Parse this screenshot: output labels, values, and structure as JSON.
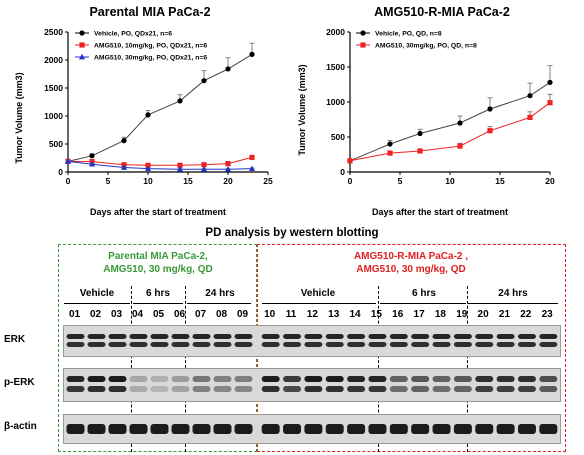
{
  "chart_data": [
    {
      "type": "line",
      "title": "Parental MIA PaCa-2",
      "xlabel": "Days after the start of treatment",
      "ylabel": "Tumor Volume (mm3)",
      "xlim": [
        0,
        25
      ],
      "ylim": [
        0,
        2500
      ],
      "xticks": [
        0,
        5,
        10,
        15,
        20,
        25
      ],
      "yticks": [
        0,
        500,
        1000,
        1500,
        2000,
        2500
      ],
      "grid": false,
      "legend": "top-left",
      "series": [
        {
          "name": "Vehicle, PO, QDx21, n=6",
          "color": "#000000",
          "marker": "circle",
          "x": [
            0,
            3,
            7,
            10,
            14,
            17,
            20,
            23
          ],
          "y": [
            190,
            290,
            560,
            1020,
            1270,
            1630,
            1840,
            2100
          ],
          "err": [
            20,
            30,
            60,
            80,
            110,
            180,
            200,
            200
          ]
        },
        {
          "name": "AMG510, 10mg/kg, PO, QDx21, n=6",
          "color": "#ee2222",
          "marker": "square",
          "x": [
            0,
            3,
            7,
            10,
            14,
            17,
            20,
            23
          ],
          "y": [
            190,
            185,
            130,
            120,
            120,
            130,
            150,
            260
          ],
          "err": [
            15,
            15,
            15,
            15,
            15,
            15,
            20,
            30
          ]
        },
        {
          "name": "AMG510, 30mg/kg, PO, QDx21, n=6",
          "color": "#2233cc",
          "marker": "triangle",
          "x": [
            0,
            3,
            7,
            10,
            14,
            17,
            20,
            23
          ],
          "y": [
            190,
            140,
            80,
            60,
            50,
            50,
            50,
            60
          ],
          "err": [
            15,
            15,
            10,
            10,
            10,
            10,
            10,
            10
          ]
        }
      ]
    },
    {
      "type": "line",
      "title": "AMG510-R-MIA PaCa-2",
      "xlabel": "Days after the start of treatment",
      "ylabel": "Tumor Volume (mm3)",
      "xlim": [
        0,
        20
      ],
      "ylim": [
        0,
        2000
      ],
      "xticks": [
        0,
        5,
        10,
        15,
        20
      ],
      "yticks": [
        0,
        500,
        1000,
        1500,
        2000
      ],
      "grid": false,
      "legend": "top-left",
      "series": [
        {
          "name": "Vehicle, PO, QD, n=8",
          "color": "#000000",
          "marker": "circle",
          "x": [
            0,
            4,
            7,
            11,
            14,
            18,
            20
          ],
          "y": [
            160,
            400,
            550,
            700,
            900,
            1090,
            1280
          ],
          "err": [
            20,
            50,
            60,
            100,
            160,
            180,
            240
          ]
        },
        {
          "name": "AMG510, 30mg/kg, PO, QD, n=8",
          "color": "#ee2222",
          "marker": "square",
          "x": [
            0,
            4,
            7,
            11,
            14,
            18,
            20
          ],
          "y": [
            160,
            270,
            300,
            370,
            590,
            780,
            990
          ],
          "err": [
            20,
            30,
            30,
            40,
            60,
            80,
            120
          ]
        }
      ]
    }
  ],
  "pd": {
    "title": "PD analysis by western blotting",
    "parental_head": [
      "Parental MIA PaCa-2,",
      "AMG510, 30 mg/kg, QD"
    ],
    "resistant_head": [
      "AMG510-R-MIA PaCa-2 ,",
      "AMG510, 30 mg/kg, QD"
    ],
    "groups": {
      "p_vehicle": "Vehicle",
      "p_6h": "6 hrs",
      "p_24h": "24 hrs",
      "r_vehicle": "Vehicle",
      "r_6h": "6 hrs",
      "r_24h": "24 hrs"
    },
    "lanes_parental": [
      "01",
      "02",
      "03",
      "04",
      "05",
      "06",
      "07",
      "08",
      "09"
    ],
    "lanes_resistant": [
      "10",
      "11",
      "12",
      "13",
      "14",
      "15",
      "16",
      "17",
      "18",
      "19",
      "20",
      "21",
      "22",
      "23"
    ],
    "blots": {
      "erk": "ERK",
      "perk": "p-ERK",
      "actin": "β-actin"
    },
    "perk_intensity": [
      0.9,
      0.95,
      0.95,
      0.25,
      0.2,
      0.3,
      0.5,
      0.45,
      0.45,
      0.95,
      0.8,
      0.95,
      0.95,
      0.9,
      0.9,
      0.6,
      0.65,
      0.6,
      0.65,
      0.85,
      0.85,
      0.85,
      0.7
    ]
  }
}
